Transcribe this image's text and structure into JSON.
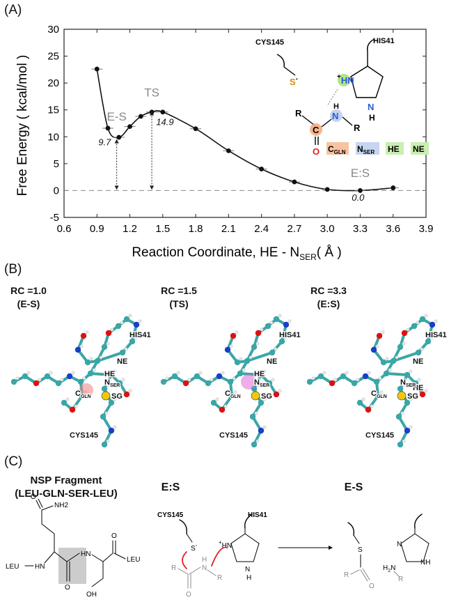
{
  "panel_a": {
    "label": "(A)",
    "chart_data": {
      "type": "line",
      "xlabel_main": "Reaction Coordinate, HE - N",
      "xlabel_sub": "SER",
      "xlabel_unit": "( Å )",
      "ylabel": "Free Energy ( kcal/mol )",
      "xlim": [
        0.6,
        3.9
      ],
      "ylim": [
        -5,
        30
      ],
      "xticks": [
        "0.6",
        "0.9",
        "1.2",
        "1.5",
        "1.8",
        "2.1",
        "2.4",
        "2.7",
        "3.0",
        "3.3",
        "3.6",
        "3.9"
      ],
      "yticks": [
        "-5",
        "0",
        "5",
        "10",
        "15",
        "20",
        "25",
        "30"
      ],
      "x": [
        0.9,
        1.0,
        1.1,
        1.2,
        1.3,
        1.4,
        1.5,
        1.8,
        2.1,
        2.4,
        2.7,
        3.0,
        3.3,
        3.6
      ],
      "y": [
        22.6,
        11.6,
        9.9,
        11.9,
        13.8,
        14.6,
        14.6,
        11.5,
        7.4,
        4.0,
        1.6,
        0.2,
        0.0,
        0.5
      ],
      "annotations": [
        {
          "text": "E-S",
          "x": 1.08,
          "y": 13.0
        },
        {
          "text": "TS",
          "x": 1.4,
          "y": 17.5
        },
        {
          "text": "9.7",
          "x": 0.97,
          "y": 8.4
        },
        {
          "text": "14.9",
          "x": 1.52,
          "y": 12.2
        },
        {
          "text": "E:S",
          "x": 3.3,
          "y": 2.5
        },
        {
          "text": "0.0",
          "x": 3.28,
          "y": -1.9
        }
      ]
    },
    "scheme": {
      "cys": "CYS145",
      "his": "HIS41",
      "s_minus": "S",
      "minus": "-",
      "plus": "+",
      "hn": "HN",
      "n": "N",
      "h": "H",
      "r": "R",
      "c": "C",
      "o": "O",
      "legend_c": "C",
      "legend_c_sub": "GLN",
      "legend_n": "N",
      "legend_n_sub": "SER",
      "legend_he": "HE",
      "legend_ne": "NE"
    }
  },
  "panel_b": {
    "label": "(B)",
    "states": [
      {
        "title_line1": "RC =1.0",
        "title_line2": "(E-S)",
        "his": "HIS41",
        "ne": "NE",
        "he": "HE",
        "nser": "N",
        "nser_sub": "SER",
        "cgln": "C",
        "cgln_sub": "GLN",
        "sg": "SG",
        "cys": "CYS145"
      },
      {
        "title_line1": "RC =1.5",
        "title_line2": "(TS)",
        "his": "HIS41",
        "ne": "NE",
        "he": "HE",
        "nser": "N",
        "nser_sub": "SER",
        "cgln": "C",
        "cgln_sub": "GLN",
        "sg": "SG",
        "cys": "CYS145"
      },
      {
        "title_line1": "RC =3.3",
        "title_line2": "(E:S)",
        "his": "HIS41",
        "ne": "NE",
        "he": "HE",
        "nser": "N",
        "nser_sub": "SER",
        "cgln": "C",
        "cgln_sub": "GLN",
        "sg": "SG",
        "cys": "CYS145"
      }
    ]
  },
  "panel_c": {
    "label": "(C)",
    "nsp_title_line1": "NSP Fragment",
    "nsp_title_line2": "(LEU-GLN-SER-LEU)",
    "nsp": {
      "o": "O",
      "nh2": "NH2",
      "leu_left": "LEU",
      "hn1": "HN",
      "hn2": "HN",
      "o2": "O",
      "o3": "O",
      "leu_right": "LEU",
      "oh": "OH"
    },
    "es_colon_title": "E:S",
    "es_colon": {
      "cys": "CYS145",
      "his": "HIS41",
      "s": "S",
      "minus": "-",
      "plus": "+",
      "hn": "HN",
      "n": "N",
      "h": "H",
      "r": "R",
      "o": "O"
    },
    "es_dash_title": "E-S",
    "es_dash": {
      "s": "S",
      "r": "R",
      "c": "C",
      "o": "O",
      "h2n": "H",
      "h2n_sub": "2",
      "n_tail": "N",
      "n": "N",
      "nh": "NH"
    }
  }
}
